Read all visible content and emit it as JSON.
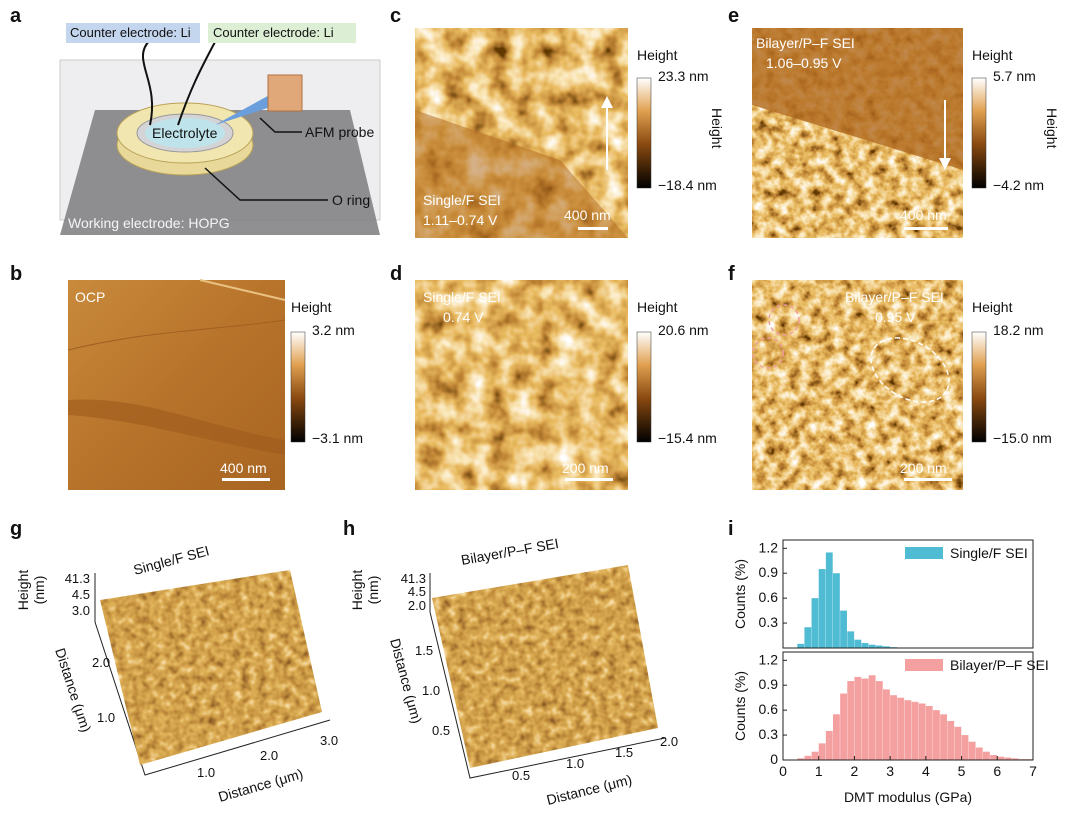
{
  "panels": {
    "a": {
      "label": "a",
      "counter_1": "Counter electrode: Li",
      "counter_2": "Counter electrode: Li",
      "electrolyte": "Electrolyte",
      "probe": "AFM probe",
      "oring": "O ring",
      "working": "Working electrode: HOPG"
    },
    "b": {
      "label": "b",
      "annotation": "OCP",
      "colorbar_title": "Height",
      "colorbar_max": "3.2 nm",
      "colorbar_min": "−3.1 nm",
      "scale_bar": "400 nm"
    },
    "c": {
      "label": "c",
      "annotation": "Single/F SEI",
      "annotation_2": "1.11–0.74 V",
      "colorbar_title": "Height",
      "colorbar_side": "Height",
      "colorbar_max": "23.3 nm",
      "colorbar_min": "−18.4 nm",
      "scale_bar": "400 nm"
    },
    "d": {
      "label": "d",
      "annotation": "Single/F SEI",
      "annotation_2": "0.74 V",
      "colorbar_title": "Height",
      "colorbar_max": "20.6 nm",
      "colorbar_min": "−15.4 nm",
      "scale_bar": "200 nm"
    },
    "e": {
      "label": "e",
      "annotation": "Bilayer/P–F SEI",
      "annotation_2": "1.06–0.95 V",
      "colorbar_title": "Height",
      "colorbar_side": "Height",
      "colorbar_max": "5.7 nm",
      "colorbar_min": "−4.2 nm",
      "scale_bar": "400 nm"
    },
    "f": {
      "label": "f",
      "annotation": "Bilayer/P–F SEI",
      "annotation_2": "0.95 V",
      "colorbar_title": "Height",
      "colorbar_max": "18.2 nm",
      "colorbar_min": "−15.0 nm",
      "scale_bar": "200 nm"
    },
    "g": {
      "label": "g",
      "title": "Single/F SEI",
      "z_label_1": "Height",
      "z_label_2": "(nm)",
      "z_ticks": [
        "41.3",
        "4.5",
        "3.0"
      ],
      "y_label": "Distance (μm)",
      "y_ticks": [
        "2.0",
        "1.0"
      ],
      "x_label": "Distance (μm)",
      "x_ticks": [
        "1.0",
        "2.0",
        "3.0"
      ]
    },
    "h": {
      "label": "h",
      "title": "Bilayer/P–F SEI",
      "z_label_1": "Height",
      "z_label_2": "(nm)",
      "z_ticks": [
        "41.3",
        "4.5",
        "2.0"
      ],
      "y_label": "Distance (μm)",
      "y_ticks": [
        "1.5",
        "1.0",
        "0.5"
      ],
      "x_label": "Distance (μm)",
      "x_ticks": [
        "0.5",
        "1.0",
        "1.5",
        "2.0"
      ]
    },
    "i": {
      "label": "i"
    }
  },
  "chart_data": [
    {
      "type": "histogram",
      "y_label": "Counts (%)",
      "legend": "upper right",
      "bins": [
        0,
        0.2,
        0.4,
        0.6,
        0.8,
        1.0,
        1.2,
        1.4,
        1.6,
        1.8,
        2.0,
        2.2,
        2.4,
        2.6,
        2.8,
        3.0,
        3.2,
        3.4,
        3.6,
        3.8,
        4.0,
        4.2,
        4.4,
        4.6,
        4.8,
        5.0,
        5.2,
        5.4,
        5.6,
        5.8,
        6.0,
        6.2,
        6.4,
        6.6,
        6.8,
        7.0
      ],
      "series": [
        {
          "name": "Single/F SEI",
          "color": "#4fbcd4",
          "values": [
            0,
            0,
            0.05,
            0.25,
            0.6,
            0.95,
            1.15,
            0.9,
            0.45,
            0.2,
            0.1,
            0.06,
            0.04,
            0.03,
            0.02,
            0.01,
            0,
            0,
            0,
            0,
            0,
            0,
            0,
            0,
            0,
            0,
            0,
            0,
            0,
            0,
            0,
            0,
            0,
            0,
            0
          ]
        }
      ],
      "xlim": [
        0,
        7
      ],
      "ylim": [
        0,
        1.3
      ],
      "yticks": [
        0.3,
        0.6,
        0.9,
        1.2
      ]
    },
    {
      "type": "histogram",
      "y_label": "Counts (%)",
      "x_label": "DMT modulus (GPa)",
      "legend": "upper right",
      "bins": [
        0,
        0.2,
        0.4,
        0.6,
        0.8,
        1.0,
        1.2,
        1.4,
        1.6,
        1.8,
        2.0,
        2.2,
        2.4,
        2.6,
        2.8,
        3.0,
        3.2,
        3.4,
        3.6,
        3.8,
        4.0,
        4.2,
        4.4,
        4.6,
        4.8,
        5.0,
        5.2,
        5.4,
        5.6,
        5.8,
        6.0,
        6.2,
        6.4,
        6.6,
        6.8,
        7.0
      ],
      "series": [
        {
          "name": "Bilayer/P–F SEI",
          "color": "#f4a0a0",
          "values": [
            0,
            0,
            0.02,
            0.05,
            0.1,
            0.2,
            0.35,
            0.55,
            0.8,
            0.95,
            1.0,
            0.98,
            1.02,
            0.95,
            0.85,
            0.78,
            0.75,
            0.72,
            0.7,
            0.68,
            0.65,
            0.6,
            0.55,
            0.47,
            0.4,
            0.3,
            0.22,
            0.15,
            0.1,
            0.06,
            0.04,
            0.03,
            0.02,
            0.01,
            0.01
          ]
        }
      ],
      "xlim": [
        0,
        7
      ],
      "ylim": [
        0,
        1.3
      ],
      "yticks": [
        0,
        0.3,
        0.6,
        0.9,
        1.2
      ],
      "xticks": [
        0,
        1,
        2,
        3,
        4,
        5,
        6,
        7
      ]
    }
  ]
}
